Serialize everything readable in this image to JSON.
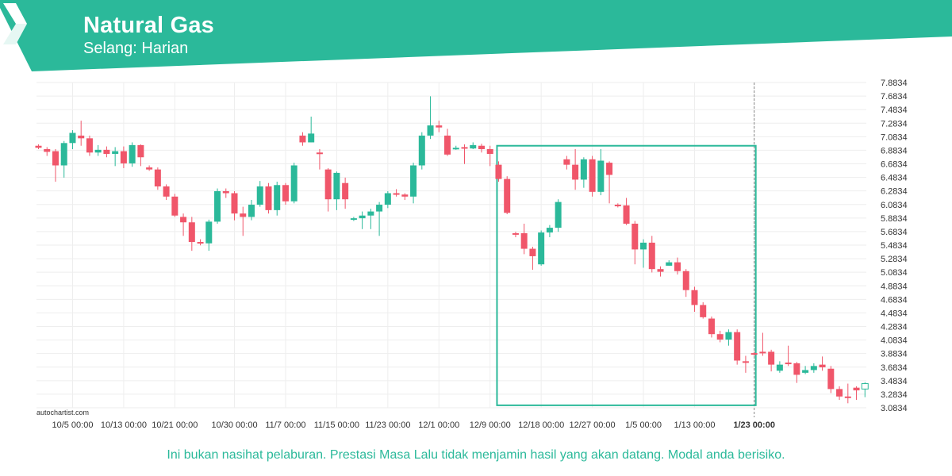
{
  "header": {
    "title": "Natural Gas",
    "subtitle": "Selang: Harian",
    "logo_icon": "autochartist-logo-icon"
  },
  "colors": {
    "brand": "#2bb99a",
    "bullish": "#2bb99a",
    "bearish": "#f0566a",
    "pattern_box": "#2bb99a",
    "grid": "#eeeeee",
    "axis_text": "#333333"
  },
  "footer": {
    "disclaimer": "Ini bukan nasihat pelaburan. Prestasi Masa Lalu tidak menjamin hasil yang akan datang. Modal anda berisiko.",
    "watermark": "autochartist.com"
  },
  "chart_data": {
    "type": "candlestick",
    "ylim": [
      3.0834,
      7.8834
    ],
    "y_ticks": [
      "7.8834",
      "7.6834",
      "7.4834",
      "7.2834",
      "7.0834",
      "6.8834",
      "6.6834",
      "6.4834",
      "6.2834",
      "6.0834",
      "5.8834",
      "5.6834",
      "5.4834",
      "5.2834",
      "5.0834",
      "4.8834",
      "4.6834",
      "4.4834",
      "4.2834",
      "4.0834",
      "3.8834",
      "3.6834",
      "3.4834",
      "3.2834",
      "3.0834"
    ],
    "x_ticks": [
      {
        "label": "10/5 00:00",
        "index": 4
      },
      {
        "label": "10/13 00:00",
        "index": 10
      },
      {
        "label": "10/21 00:00",
        "index": 16
      },
      {
        "label": "10/30 00:00",
        "index": 23
      },
      {
        "label": "11/7 00:00",
        "index": 29
      },
      {
        "label": "11/15 00:00",
        "index": 35
      },
      {
        "label": "11/23 00:00",
        "index": 41
      },
      {
        "label": "12/1 00:00",
        "index": 47
      },
      {
        "label": "12/9 00:00",
        "index": 53
      },
      {
        "label": "12/18 00:00",
        "index": 59
      },
      {
        "label": "12/27 00:00",
        "index": 65
      },
      {
        "label": "1/5 00:00",
        "index": 71
      },
      {
        "label": "1/13 00:00",
        "index": 77
      },
      {
        "label": "1/23 00:00",
        "index": 84,
        "highlight": true
      }
    ],
    "pattern_box": {
      "start_index": 54,
      "end_index": 84,
      "high": 6.95,
      "low": 3.12
    },
    "candles": [
      [
        6.95,
        6.92,
        6.97,
        6.9
      ],
      [
        6.9,
        6.86,
        6.93,
        6.8
      ],
      [
        6.87,
        6.66,
        6.9,
        6.42
      ],
      [
        6.66,
        6.99,
        7.02,
        6.48
      ],
      [
        6.99,
        7.14,
        7.18,
        6.9
      ],
      [
        7.1,
        7.06,
        7.32,
        6.95
      ],
      [
        7.06,
        6.85,
        7.1,
        6.8
      ],
      [
        6.85,
        6.89,
        6.96,
        6.8
      ],
      [
        6.89,
        6.83,
        6.94,
        6.78
      ],
      [
        6.83,
        6.87,
        6.93,
        6.65
      ],
      [
        6.87,
        6.69,
        6.94,
        6.62
      ],
      [
        6.69,
        6.96,
        7.0,
        6.64
      ],
      [
        6.96,
        6.78,
        6.97,
        6.65
      ],
      [
        6.63,
        6.6,
        6.66,
        6.58
      ],
      [
        6.6,
        6.35,
        6.63,
        6.3
      ],
      [
        6.35,
        6.2,
        6.38,
        6.15
      ],
      [
        6.2,
        5.92,
        6.24,
        5.9
      ],
      [
        5.9,
        5.82,
        5.95,
        5.62
      ],
      [
        5.82,
        5.53,
        5.9,
        5.4
      ],
      [
        5.53,
        5.51,
        5.57,
        5.48
      ],
      [
        5.51,
        5.83,
        5.86,
        5.4
      ],
      [
        5.83,
        6.28,
        6.32,
        5.8
      ],
      [
        6.28,
        6.25,
        6.32,
        6.18
      ],
      [
        6.25,
        5.95,
        6.28,
        5.85
      ],
      [
        5.95,
        5.9,
        6.05,
        5.62
      ],
      [
        5.9,
        6.08,
        6.15,
        5.85
      ],
      [
        6.08,
        6.35,
        6.43,
        6.05
      ],
      [
        6.35,
        6.0,
        6.4,
        5.95
      ],
      [
        6.0,
        6.37,
        6.42,
        5.92
      ],
      [
        6.37,
        6.13,
        6.4,
        6.08
      ],
      [
        6.13,
        6.66,
        6.7,
        6.1
      ],
      [
        7.1,
        7.0,
        7.15,
        6.95
      ],
      [
        7.0,
        7.13,
        7.38,
        7.0
      ],
      [
        6.85,
        6.83,
        6.9,
        6.6
      ],
      [
        6.6,
        6.16,
        6.62,
        5.98
      ],
      [
        6.16,
        6.55,
        6.57,
        6.0
      ],
      [
        6.4,
        6.16,
        6.48,
        6.02
      ],
      [
        5.86,
        5.88,
        5.9,
        5.84
      ],
      [
        5.88,
        5.92,
        5.98,
        5.72
      ],
      [
        5.92,
        5.98,
        6.02,
        5.72
      ],
      [
        5.98,
        6.08,
        6.12,
        5.62
      ],
      [
        6.08,
        6.25,
        6.28,
        6.03
      ],
      [
        6.25,
        6.23,
        6.31,
        6.2
      ],
      [
        6.23,
        6.2,
        6.25,
        6.15
      ],
      [
        6.2,
        6.66,
        6.7,
        6.1
      ],
      [
        6.66,
        7.1,
        7.15,
        6.6
      ],
      [
        7.1,
        7.25,
        7.68,
        7.05
      ],
      [
        7.25,
        7.22,
        7.32,
        7.15
      ],
      [
        7.1,
        6.82,
        7.2,
        6.8
      ],
      [
        6.91,
        6.92,
        6.95,
        6.89
      ],
      [
        6.93,
        6.91,
        6.97,
        6.68
      ],
      [
        6.91,
        6.96,
        7.0,
        6.9
      ],
      [
        6.95,
        6.9,
        6.98,
        6.85
      ],
      [
        6.9,
        6.83,
        6.95,
        6.65
      ],
      [
        6.67,
        6.46,
        6.72,
        6.42
      ],
      [
        6.46,
        5.96,
        6.5,
        5.94
      ],
      [
        5.66,
        5.64,
        5.68,
        5.6
      ],
      [
        5.66,
        5.43,
        5.8,
        5.35
      ],
      [
        5.43,
        5.32,
        5.46,
        5.12
      ],
      [
        5.2,
        5.67,
        5.7,
        5.18
      ],
      [
        5.67,
        5.74,
        5.78,
        5.6
      ],
      [
        5.74,
        6.12,
        6.16,
        5.68
      ],
      [
        6.75,
        6.67,
        6.8,
        6.6
      ],
      [
        6.67,
        6.45,
        6.9,
        6.3
      ],
      [
        6.45,
        6.75,
        6.78,
        6.33
      ],
      [
        6.75,
        6.27,
        6.8,
        6.2
      ],
      [
        6.27,
        6.73,
        6.9,
        6.22
      ],
      [
        6.7,
        6.52,
        6.72,
        6.1
      ],
      [
        6.08,
        6.07,
        6.1,
        6.04
      ],
      [
        6.07,
        5.8,
        6.18,
        5.78
      ],
      [
        5.8,
        5.42,
        5.84,
        5.2
      ],
      [
        5.42,
        5.52,
        5.57,
        5.15
      ],
      [
        5.52,
        5.13,
        5.62,
        5.08
      ],
      [
        5.13,
        5.09,
        5.17,
        5.02
      ],
      [
        5.18,
        5.23,
        5.26,
        5.18
      ],
      [
        5.23,
        5.1,
        5.3,
        5.05
      ],
      [
        5.1,
        4.82,
        5.13,
        4.72
      ],
      [
        4.82,
        4.6,
        4.87,
        4.5
      ],
      [
        4.6,
        4.42,
        4.64,
        4.4
      ],
      [
        4.4,
        4.17,
        4.43,
        4.12
      ]
    ],
    "candles_tail": [
      [
        4.17,
        4.09,
        4.22,
        4.05
      ],
      [
        4.09,
        4.2,
        4.24,
        4.0
      ],
      [
        4.2,
        3.78,
        4.24,
        3.72
      ],
      [
        3.77,
        3.76,
        3.85,
        3.6
      ],
      [
        3.89,
        3.87,
        3.91,
        3.85
      ],
      [
        3.91,
        3.89,
        4.19,
        3.85
      ],
      [
        3.91,
        3.72,
        3.94,
        3.62
      ],
      [
        3.63,
        3.72,
        3.77,
        3.6
      ],
      [
        3.75,
        3.74,
        4.0,
        3.7
      ],
      [
        3.74,
        3.57,
        3.76,
        3.45
      ],
      [
        3.6,
        3.64,
        3.7,
        3.58
      ],
      [
        3.64,
        3.7,
        3.74,
        3.6
      ],
      [
        3.72,
        3.68,
        3.84,
        3.63
      ],
      [
        3.66,
        3.36,
        3.7,
        3.3
      ],
      [
        3.36,
        3.25,
        3.4,
        3.2
      ],
      [
        3.25,
        3.23,
        3.44,
        3.15
      ],
      [
        3.38,
        3.34,
        3.4,
        3.2
      ],
      [
        3.36,
        3.44,
        3.46,
        3.24
      ]
    ]
  }
}
